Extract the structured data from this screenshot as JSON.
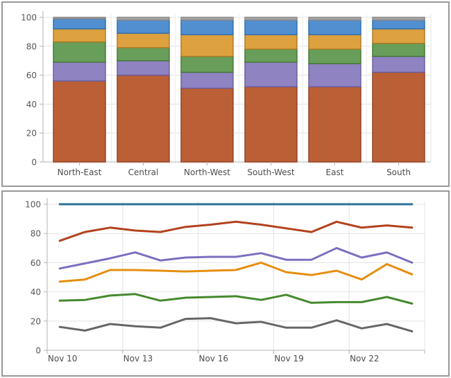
{
  "page": {
    "background": "#ffffff",
    "panel_border_color": "#979797",
    "axis_line_color": "#b3b3b3",
    "gridline_color": "#e3e3e3",
    "label_color": "#565656"
  },
  "chart_data": [
    {
      "type": "bar",
      "stacked": true,
      "title": "",
      "categories": [
        "North-East",
        "Central",
        "North-West",
        "South-West",
        "East",
        "South"
      ],
      "series": [
        {
          "name": "rust",
          "fill": "#bb6036",
          "stroke": "#8e3d22",
          "values": [
            56,
            60,
            51,
            52,
            52,
            62
          ]
        },
        {
          "name": "purple",
          "fill": "#8f83c1",
          "stroke": "#655ca0",
          "values": [
            13,
            10,
            11,
            17,
            16,
            11
          ]
        },
        {
          "name": "green",
          "fill": "#689e5a",
          "stroke": "#40762f",
          "values": [
            14,
            9,
            11,
            9,
            10,
            9
          ]
        },
        {
          "name": "orange",
          "fill": "#dda13f",
          "stroke": "#b07722",
          "values": [
            9,
            10,
            15,
            10,
            10,
            10
          ]
        },
        {
          "name": "blue",
          "fill": "#528fd1",
          "stroke": "#2b6cb1",
          "values": [
            7,
            9,
            10,
            10,
            10,
            6
          ]
        },
        {
          "name": "gray",
          "fill": "#a4a4a4",
          "stroke": "#858585",
          "values": [
            1,
            2,
            2,
            2,
            2,
            2
          ]
        }
      ],
      "xlabel": "",
      "ylabel": "",
      "ylim": [
        0,
        100
      ],
      "yticks": [
        "0",
        "20",
        "40",
        "60",
        "80",
        "100"
      ],
      "grid": true,
      "legend": "none"
    },
    {
      "type": "line",
      "title": "",
      "x_point_count": 15,
      "x_tick_labels": [
        {
          "index": 0,
          "label": "Nov 10"
        },
        {
          "index": 3,
          "label": "Nov 13"
        },
        {
          "index": 6,
          "label": "Nov 16"
        },
        {
          "index": 9,
          "label": "Nov 19"
        },
        {
          "index": 12,
          "label": "Nov 22"
        }
      ],
      "series": [
        {
          "name": "gray",
          "color": "#666666",
          "values": [
            16,
            13.5,
            18,
            16.5,
            15.5,
            21.5,
            22,
            18.5,
            19.5,
            15.5,
            15.5,
            20.5,
            15,
            18,
            13
          ]
        },
        {
          "name": "green",
          "color": "#44892d",
          "values": [
            34,
            34.5,
            37.5,
            38.5,
            34,
            36,
            36.5,
            37,
            34.5,
            38,
            32.5,
            33,
            33,
            36.5,
            32
          ]
        },
        {
          "name": "orange",
          "color": "#e68e0f",
          "values": [
            47,
            48.5,
            55,
            55,
            54.5,
            54,
            54.5,
            55,
            60,
            53.5,
            51.5,
            54.5,
            48.5,
            59,
            52
          ]
        },
        {
          "name": "purple",
          "color": "#7c6ec0",
          "values": [
            56,
            59.5,
            63,
            67,
            61.5,
            63.5,
            64,
            64,
            66.5,
            62,
            62,
            70,
            63.5,
            67,
            60
          ]
        },
        {
          "name": "red",
          "color": "#b2421d",
          "values": [
            75,
            81,
            84,
            82,
            81,
            84.5,
            86,
            88,
            86,
            83.5,
            81,
            88,
            84,
            85.5,
            84
          ]
        },
        {
          "name": "blue",
          "color": "#2c7097",
          "values": [
            100,
            100,
            100,
            100,
            100,
            100,
            100,
            100,
            100,
            100,
            100,
            100,
            100,
            100,
            100
          ]
        }
      ],
      "xlabel": "",
      "ylabel": "",
      "ylim": [
        0,
        100
      ],
      "yticks": [
        "0",
        "20",
        "40",
        "60",
        "80",
        "100"
      ],
      "grid": true,
      "legend": "none"
    }
  ]
}
